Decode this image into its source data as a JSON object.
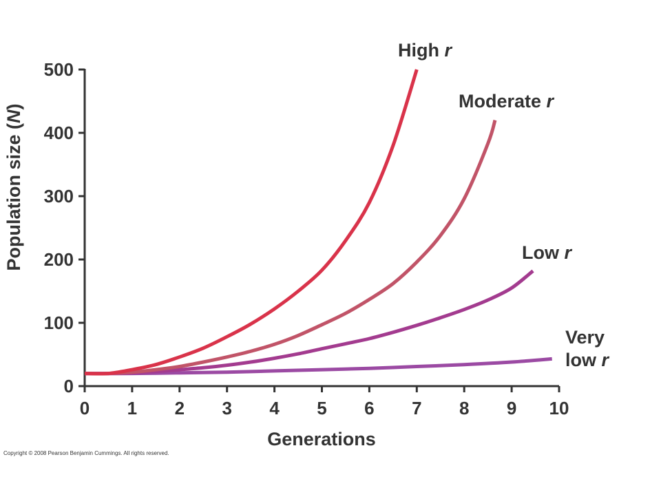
{
  "chart_data": {
    "type": "line",
    "title": "",
    "xlabel": "Generations",
    "ylabel_main": "Population size (",
    "ylabel_var": "N",
    "ylabel_end": ")",
    "xlim": [
      0,
      10
    ],
    "ylim": [
      0,
      500
    ],
    "x_ticks": [
      "0",
      "1",
      "2",
      "3",
      "4",
      "5",
      "6",
      "7",
      "8",
      "9",
      "10"
    ],
    "y_ticks": [
      "0",
      "100",
      "200",
      "300",
      "400",
      "500"
    ],
    "grid": false,
    "legend": "none",
    "series": [
      {
        "name": "High r",
        "label_main": "High",
        "label_var": "r",
        "color": "#d9334a",
        "x": [
          0,
          0.5,
          1,
          1.5,
          2,
          2.5,
          3,
          3.5,
          4,
          4.5,
          5,
          5.5,
          6,
          6.5,
          7
        ],
        "y": [
          20,
          20,
          26,
          34,
          46,
          60,
          78,
          98,
          122,
          150,
          183,
          230,
          290,
          380,
          500
        ]
      },
      {
        "name": "Moderate r",
        "label_main": "Moderate",
        "label_var": "r",
        "color": "#c15468",
        "x": [
          0,
          0.5,
          1,
          1.5,
          2,
          2.5,
          3,
          3.5,
          4,
          4.5,
          5,
          5.5,
          6,
          6.5,
          7,
          7.5,
          8,
          8.5,
          8.65
        ],
        "y": [
          20,
          20,
          22,
          26,
          31,
          38,
          46,
          55,
          66,
          80,
          97,
          115,
          137,
          162,
          196,
          238,
          296,
          383,
          420
        ]
      },
      {
        "name": "Low r",
        "label_main": "Low",
        "label_var": "r",
        "color": "#a33b8f",
        "x": [
          0,
          0.5,
          1,
          1.5,
          2,
          2.5,
          3,
          3.5,
          4,
          4.5,
          5,
          5.5,
          6,
          6.5,
          7,
          7.5,
          8,
          8.5,
          9,
          9.45
        ],
        "y": [
          20,
          20,
          21,
          23,
          26,
          29,
          33,
          38,
          44,
          51,
          59,
          67,
          75,
          85,
          96,
          108,
          121,
          136,
          155,
          182
        ]
      },
      {
        "name": "Very low r",
        "label_main": "Very",
        "label_line2": "low",
        "label_var": "r",
        "color": "#9b4aa3",
        "x": [
          0,
          1,
          2,
          3,
          4,
          5,
          6,
          7,
          8,
          9,
          9.85
        ],
        "y": [
          20,
          20,
          21,
          22,
          24,
          26,
          28,
          31,
          34,
          38,
          43
        ]
      }
    ]
  },
  "copyright": "Copyright © 2008 Pearson Benjamin Cummings. All rights reserved."
}
